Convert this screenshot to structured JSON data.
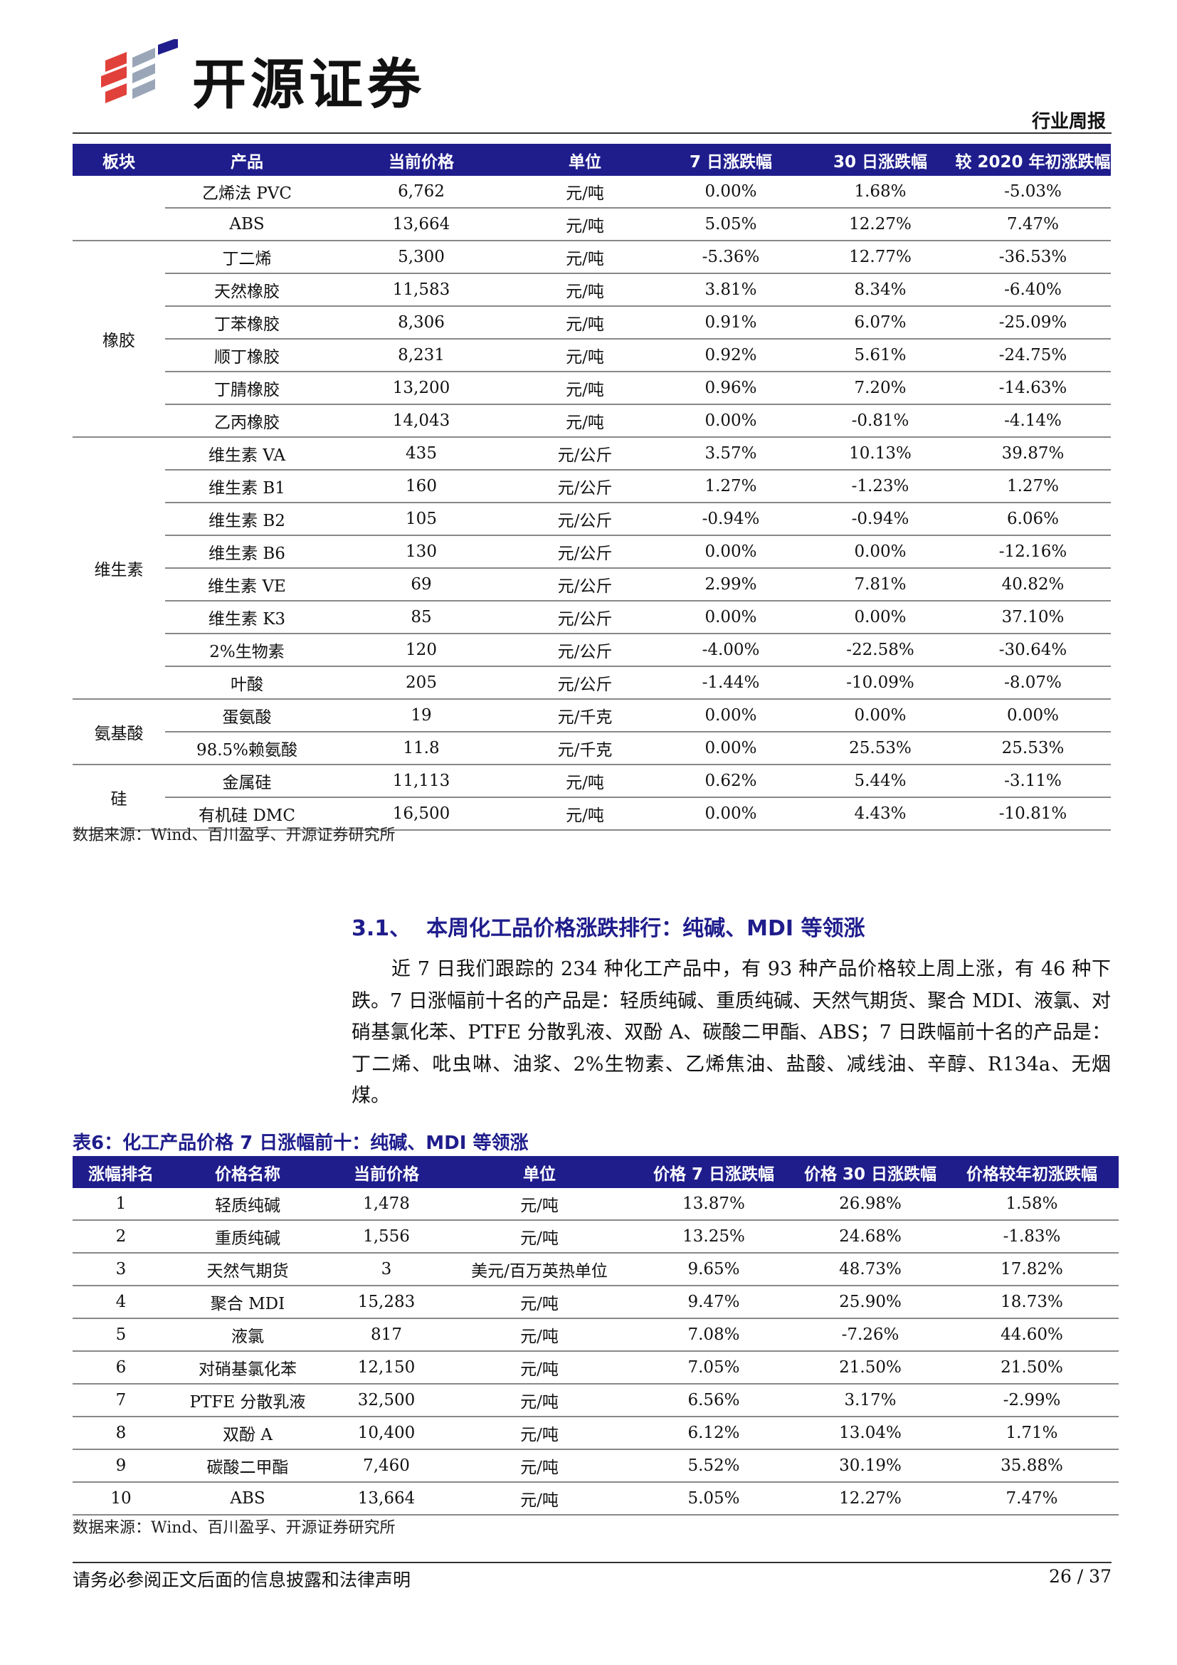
{
  "header": {
    "brand": "开源证券",
    "report_type": "行业周报",
    "logo_colors": [
      "#e0413a",
      "#9aa6b8",
      "#1f1d8c"
    ]
  },
  "table1": {
    "columns": [
      "板块",
      "产品",
      "当前价格",
      "单位",
      "7 日涨跌幅",
      "30 日涨跌幅",
      "较 2020 年初涨跌幅"
    ],
    "groups": [
      {
        "category": "",
        "rows": [
          [
            "乙烯法 PVC",
            "6,762",
            "元/吨",
            "0.00%",
            "1.68%",
            "-5.03%"
          ],
          [
            "ABS",
            "13,664",
            "元/吨",
            "5.05%",
            "12.27%",
            "7.47%"
          ]
        ]
      },
      {
        "category": "橡胶",
        "rows": [
          [
            "丁二烯",
            "5,300",
            "元/吨",
            "-5.36%",
            "12.77%",
            "-36.53%"
          ],
          [
            "天然橡胶",
            "11,583",
            "元/吨",
            "3.81%",
            "8.34%",
            "-6.40%"
          ],
          [
            "丁苯橡胶",
            "8,306",
            "元/吨",
            "0.91%",
            "6.07%",
            "-25.09%"
          ],
          [
            "顺丁橡胶",
            "8,231",
            "元/吨",
            "0.92%",
            "5.61%",
            "-24.75%"
          ],
          [
            "丁腈橡胶",
            "13,200",
            "元/吨",
            "0.96%",
            "7.20%",
            "-14.63%"
          ],
          [
            "乙丙橡胶",
            "14,043",
            "元/吨",
            "0.00%",
            "-0.81%",
            "-4.14%"
          ]
        ]
      },
      {
        "category": "维生素",
        "rows": [
          [
            "维生素 VA",
            "435",
            "元/公斤",
            "3.57%",
            "10.13%",
            "39.87%"
          ],
          [
            "维生素 B1",
            "160",
            "元/公斤",
            "1.27%",
            "-1.23%",
            "1.27%"
          ],
          [
            "维生素 B2",
            "105",
            "元/公斤",
            "-0.94%",
            "-0.94%",
            "6.06%"
          ],
          [
            "维生素 B6",
            "130",
            "元/公斤",
            "0.00%",
            "0.00%",
            "-12.16%"
          ],
          [
            "维生素 VE",
            "69",
            "元/公斤",
            "2.99%",
            "7.81%",
            "40.82%"
          ],
          [
            "维生素 K3",
            "85",
            "元/公斤",
            "0.00%",
            "0.00%",
            "37.10%"
          ],
          [
            "2%生物素",
            "120",
            "元/公斤",
            "-4.00%",
            "-22.58%",
            "-30.64%"
          ],
          [
            "叶酸",
            "205",
            "元/公斤",
            "-1.44%",
            "-10.09%",
            "-8.07%"
          ]
        ]
      },
      {
        "category": "氨基酸",
        "rows": [
          [
            "蛋氨酸",
            "19",
            "元/千克",
            "0.00%",
            "0.00%",
            "0.00%"
          ],
          [
            "98.5%赖氨酸",
            "11.8",
            "元/千克",
            "0.00%",
            "25.53%",
            "25.53%"
          ]
        ]
      },
      {
        "category": "硅",
        "rows": [
          [
            "金属硅",
            "11,113",
            "元/吨",
            "0.62%",
            "5.44%",
            "-3.11%"
          ],
          [
            "有机硅 DMC",
            "16,500",
            "元/吨",
            "0.00%",
            "4.43%",
            "-10.81%"
          ]
        ]
      }
    ],
    "source": "数据来源：Wind、百川盈孚、开源证券研究所"
  },
  "section": {
    "number": "3.1、",
    "title": "本周化工品价格涨跌排行：纯碱、MDI 等领涨",
    "paragraph": "近 7 日我们跟踪的 234 种化工产品中，有 93 种产品价格较上周上涨，有 46 种下跌。7 日涨幅前十名的产品是：轻质纯碱、重质纯碱、天然气期货、聚合 MDI、液氯、对硝基氯化苯、PTFE 分散乳液、双酚 A、碳酸二甲酯、ABS；7 日跌幅前十名的产品是：丁二烯、吡虫啉、油浆、2%生物素、乙烯焦油、盐酸、减线油、辛醇、R134a、无烟煤。"
  },
  "table2": {
    "title": "表6：化工产品价格 7 日涨幅前十：纯碱、MDI 等领涨",
    "columns": [
      "涨幅排名",
      "价格名称",
      "当前价格",
      "单位",
      "价格 7 日涨跌幅",
      "价格 30 日涨跌幅",
      "价格较年初涨跌幅"
    ],
    "rows": [
      [
        "1",
        "轻质纯碱",
        "1,478",
        "元/吨",
        "13.87%",
        "26.98%",
        "1.58%"
      ],
      [
        "2",
        "重质纯碱",
        "1,556",
        "元/吨",
        "13.25%",
        "24.68%",
        "-1.83%"
      ],
      [
        "3",
        "天然气期货",
        "3",
        "美元/百万英热单位",
        "9.65%",
        "48.73%",
        "17.82%"
      ],
      [
        "4",
        "聚合 MDI",
        "15,283",
        "元/吨",
        "9.47%",
        "25.90%",
        "18.73%"
      ],
      [
        "5",
        "液氯",
        "817",
        "元/吨",
        "7.08%",
        "-7.26%",
        "44.60%"
      ],
      [
        "6",
        "对硝基氯化苯",
        "12,150",
        "元/吨",
        "7.05%",
        "21.50%",
        "21.50%"
      ],
      [
        "7",
        "PTFE 分散乳液",
        "32,500",
        "元/吨",
        "6.56%",
        "3.17%",
        "-2.99%"
      ],
      [
        "8",
        "双酚 A",
        "10,400",
        "元/吨",
        "6.12%",
        "13.04%",
        "1.71%"
      ],
      [
        "9",
        "碳酸二甲酯",
        "7,460",
        "元/吨",
        "5.52%",
        "30.19%",
        "35.88%"
      ],
      [
        "10",
        "ABS",
        "13,664",
        "元/吨",
        "5.05%",
        "12.27%",
        "7.47%"
      ]
    ],
    "source": "数据来源：Wind、百川盈孚、开源证券研究所"
  },
  "footer": {
    "disclaimer": "请务必参阅正文后面的信息披露和法律声明",
    "page": "26 / 37"
  }
}
